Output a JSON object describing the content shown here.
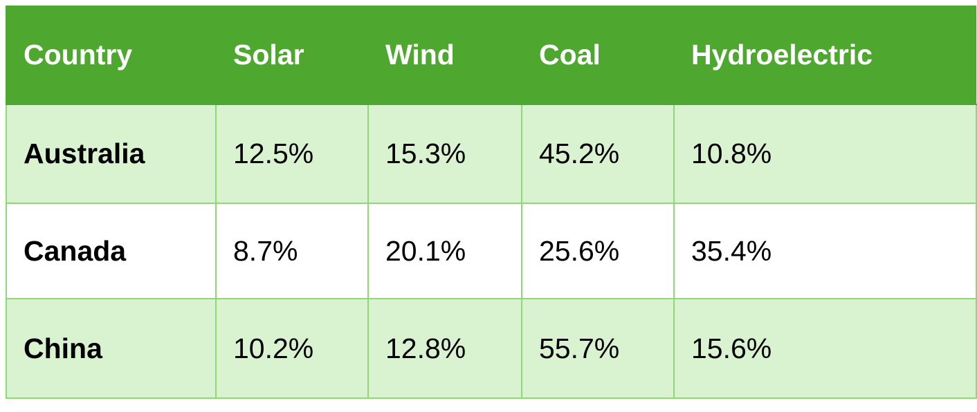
{
  "table": {
    "header": [
      "Country",
      "Solar",
      "Wind",
      "Coal",
      "Hydroelectric"
    ],
    "rows": [
      [
        "Australia",
        "12.5%",
        "15.3%",
        "45.2%",
        "10.8%"
      ],
      [
        "Canada",
        "8.7%",
        "20.1%",
        "25.6%",
        "35.4%"
      ],
      [
        "China",
        "10.2%",
        "12.8%",
        "55.7%",
        "15.6%"
      ]
    ]
  }
}
